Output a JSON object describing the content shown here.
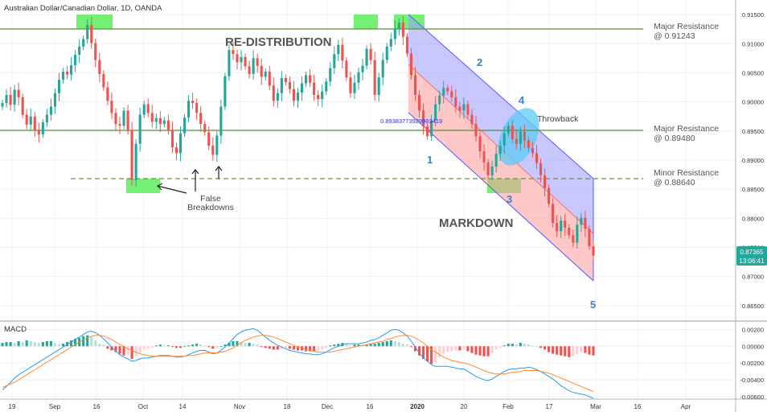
{
  "header": {
    "title": "Australian Dollar/Canadian Dollar, 1D, OANDA"
  },
  "colors": {
    "up": "#26a69a",
    "down": "#ef5350",
    "resistance_line": "#5b8f3a",
    "minor_line": "#6b8e4e",
    "highlight_box": "#66ee66",
    "channel_upper_fill": "#9b9bff",
    "channel_lower_fill": "#ff9b9b",
    "channel_line": "#5555ff",
    "ellipse": "#5ecbf5",
    "wave_label": "#3b82c4",
    "macd_line": "#2b9be8",
    "signal_line": "#ff8a33",
    "price_badge": "#26a69a"
  },
  "annotations": {
    "redistribution": "RE-DISTRIBUTION",
    "markdown": "MARKDOWN",
    "throwback": "Throwback",
    "false_breakdowns_1": "False",
    "false_breakdowns_2": "Breakdowns",
    "channel_value": "0.89383773929983419",
    "wave_1": "1",
    "wave_2": "2",
    "wave_3": "3",
    "wave_4": "4",
    "wave_5": "5"
  },
  "levels": {
    "major_1_line1": "Major Resistance",
    "major_1_line2": "@ 0.91243",
    "major_2_line1": "Major Resistance",
    "major_2_line2": "@ 0.89480",
    "minor_line1": "Minor Resistance",
    "minor_line2": "@ 0.88640"
  },
  "price_badge": {
    "price": "0.87365",
    "time": "13:06:41"
  },
  "macd": {
    "label": "MACD"
  },
  "chart_data": {
    "type": "candlestick",
    "title": "Australian Dollar/Canadian Dollar, 1D, OANDA",
    "price_axis_ticks": [
      "0.91500",
      "0.91000",
      "0.90500",
      "0.90000",
      "0.89500",
      "0.89000",
      "0.88500",
      "0.88000",
      "0.87500",
      "0.87000",
      "0.86500"
    ],
    "price_range": [
      0.8625,
      0.9175
    ],
    "macd_axis_ticks": [
      "0.00200",
      "0.00000",
      "-0.00200",
      "-0.00400",
      "-0.00600"
    ],
    "macd_range": [
      -0.0063,
      0.0029
    ],
    "x_axis_labels": [
      "19",
      "Sep",
      "16",
      "Oct",
      "14",
      "Nov",
      "18",
      "Dec",
      "16",
      "2020",
      "20",
      "Feb",
      "17",
      "Mar",
      "16",
      "Apr"
    ],
    "levels": [
      {
        "name": "Major Resistance",
        "value": 0.91243
      },
      {
        "name": "Major Resistance",
        "value": 0.8948
      },
      {
        "name": "Minor Resistance",
        "value": 0.8864
      }
    ],
    "closes": [
      0.8998,
      0.9012,
      0.8995,
      0.9021,
      0.9008,
      0.8978,
      0.8961,
      0.8975,
      0.8952,
      0.8944,
      0.8965,
      0.8978,
      0.8992,
      0.9015,
      0.9038,
      0.9052,
      0.9047,
      0.9063,
      0.9081,
      0.9095,
      0.9108,
      0.9132,
      0.9101,
      0.9072,
      0.9048,
      0.9025,
      0.9002,
      0.8981,
      0.8962,
      0.8959,
      0.8985,
      0.8952,
      0.8866,
      0.8928,
      0.8978,
      0.8996,
      0.8981,
      0.8966,
      0.8972,
      0.8962,
      0.8968,
      0.8952,
      0.8922,
      0.8912,
      0.8946,
      0.8973,
      0.9002,
      0.8998,
      0.8981,
      0.8962,
      0.8948,
      0.8925,
      0.8909,
      0.8942,
      0.8992,
      0.9044,
      0.9089,
      0.9082,
      0.9068,
      0.9077,
      0.9061,
      0.9048,
      0.9075,
      0.9062,
      0.9043,
      0.9052,
      0.9028,
      0.9002,
      0.9015,
      0.9041,
      0.9034,
      0.9022,
      0.9002,
      0.9016,
      0.9032,
      0.9046,
      0.9033,
      0.9012,
      0.9005,
      0.9018,
      0.9035,
      0.9058,
      0.9082,
      0.9098,
      0.9071,
      0.9042,
      0.9015,
      0.9033,
      0.9051,
      0.9062,
      0.9091,
      0.9072,
      0.9012,
      0.9042,
      0.9072,
      0.9095,
      0.9108,
      0.9126,
      0.9136,
      0.9112,
      0.9083,
      0.9046,
      0.9012,
      0.8985,
      0.8958,
      0.8941,
      0.8968,
      0.8996,
      0.9011,
      0.9024,
      0.9018,
      0.9008,
      0.8992,
      0.8985,
      0.8996,
      0.8978,
      0.8962,
      0.8941,
      0.8915,
      0.8896,
      0.8874,
      0.8889,
      0.8911,
      0.8925,
      0.8946,
      0.8959,
      0.8936,
      0.8928,
      0.8949,
      0.8934,
      0.8921,
      0.8912,
      0.8895,
      0.8874,
      0.8852,
      0.8825,
      0.8792,
      0.8778,
      0.8796,
      0.8784,
      0.8771,
      0.8758,
      0.8789,
      0.8801,
      0.8782,
      0.8752,
      0.8736
    ],
    "macd_hist": [
      0.0004,
      0.0005,
      0.0005,
      0.0004,
      0.0006,
      0.0005,
      0.0007,
      0.0006,
      0.0005,
      0.0004,
      0.0005,
      0.0006,
      0.0006,
      0.0004,
      0.0002,
      0.0003,
      0.0005,
      0.0007,
      0.0009,
      0.001,
      0.0012,
      0.0013,
      0.0011,
      0.0007,
      0.0003,
      0.0002,
      -0.0003,
      -0.0005,
      -0.0007,
      -0.0009,
      -0.0011,
      -0.001,
      -0.0015,
      -0.0012,
      -0.0008,
      -0.0004,
      -0.0003,
      -0.0002,
      0.0001,
      0.0002,
      0.0001,
      0.0001,
      -0.0001,
      -0.0002,
      -0.0002,
      0.0,
      0.0001,
      0.0002,
      0.0003,
      0.0002,
      0.0001,
      -0.0001,
      -0.0003,
      -0.0002,
      0.0,
      0.0002,
      0.0004,
      0.0006,
      0.0006,
      0.0005,
      0.0004,
      0.0004,
      0.0003,
      0.0002,
      -0.0001,
      -0.0002,
      -0.0003,
      -0.0004,
      -0.0004,
      -0.0003,
      -0.0002,
      -0.0003,
      -0.0004,
      -0.0005,
      -0.0005,
      -0.0006,
      -0.0006,
      -0.0006,
      -0.0005,
      -0.0004,
      -0.0002,
      0.0001,
      0.0002,
      0.0003,
      0.0004,
      0.0003,
      0.0001,
      0.0002,
      0.0002,
      0.0001,
      0.0002,
      0.0003,
      0.0003,
      0.0004,
      0.0005,
      0.0006,
      0.0007,
      0.0006,
      0.0005,
      0.0003,
      0.0002,
      -0.0001,
      -0.0006,
      -0.0011,
      -0.0015,
      -0.0018,
      -0.0021,
      -0.0019,
      -0.0013,
      -0.0009,
      -0.0007,
      -0.0006,
      -0.0005,
      -0.0005,
      -0.0004,
      -0.0006,
      -0.0008,
      -0.001,
      -0.0011,
      -0.0012,
      -0.0012,
      -0.0008,
      -0.0004,
      -0.0002,
      0.0001,
      0.0003,
      0.0003,
      0.0002,
      0.0004,
      0.0003,
      0.0002,
      0.0001,
      0.0,
      -0.0002,
      -0.0004,
      -0.0007,
      -0.0009,
      -0.001,
      -0.0011,
      -0.0012,
      -0.0013,
      -0.0012,
      -0.0009,
      -0.0007,
      -0.0008,
      -0.001,
      -0.0011
    ],
    "macd_line": [
      -0.0052,
      -0.0048,
      -0.0043,
      -0.0038,
      -0.0034,
      -0.0031,
      -0.0028,
      -0.0025,
      -0.0022,
      -0.0019,
      -0.0016,
      -0.0013,
      -0.001,
      -0.0007,
      -0.0004,
      -0.0001,
      0.0002,
      0.0005,
      0.0008,
      0.0011,
      0.0014,
      0.0017,
      0.0018,
      0.0016,
      0.0013,
      0.0009,
      0.0004,
      -0.0001,
      -0.0006,
      -0.001,
      -0.0013,
      -0.0015,
      -0.0018,
      -0.0017,
      -0.0015,
      -0.0014,
      -0.0014,
      -0.0013,
      -0.0012,
      -0.0011,
      -0.0011,
      -0.0011,
      -0.0012,
      -0.0013,
      -0.0013,
      -0.0012,
      -0.001,
      -0.0008,
      -0.0006,
      -0.0005,
      -0.0005,
      -0.0007,
      -0.0009,
      -0.0008,
      -0.0005,
      -0.0001,
      0.0004,
      0.0009,
      0.0014,
      0.0017,
      0.0019,
      0.002,
      0.0021,
      0.0019,
      0.0015,
      0.0011,
      0.0007,
      0.0004,
      0.0001,
      -0.0001,
      -0.0003,
      -0.0005,
      -0.0006,
      -0.0007,
      -0.0008,
      -0.0009,
      -0.0009,
      -0.001,
      -0.001,
      -0.0009,
      -0.0007,
      -0.0004,
      -0.0002,
      0.0,
      0.0002,
      0.0003,
      0.0003,
      0.0003,
      0.0003,
      0.0004,
      0.0005,
      0.0007,
      0.0008,
      0.001,
      0.0013,
      0.0016,
      0.0019,
      0.002,
      0.0019,
      0.0016,
      0.0012,
      0.0006,
      -0.0001,
      -0.0008,
      -0.0014,
      -0.0018,
      -0.0022,
      -0.0024,
      -0.0024,
      -0.0024,
      -0.0024,
      -0.0025,
      -0.0026,
      -0.0027,
      -0.0027,
      -0.003,
      -0.0033,
      -0.0036,
      -0.0038,
      -0.004,
      -0.0041,
      -0.0039,
      -0.0036,
      -0.0033,
      -0.003,
      -0.0028,
      -0.0027,
      -0.0027,
      -0.0026,
      -0.0026,
      -0.0025,
      -0.0026,
      -0.0028,
      -0.003,
      -0.0033,
      -0.0036,
      -0.0039,
      -0.0043,
      -0.0047,
      -0.005,
      -0.0053,
      -0.0055,
      -0.0056,
      -0.0057,
      -0.0058,
      -0.006,
      -0.0062
    ],
    "signal_line": [
      -0.0049,
      -0.0047,
      -0.0045,
      -0.0043,
      -0.004,
      -0.0037,
      -0.0034,
      -0.0031,
      -0.0028,
      -0.0025,
      -0.0022,
      -0.0019,
      -0.0016,
      -0.0013,
      -0.001,
      -0.0007,
      -0.0004,
      -0.0001,
      0.0002,
      0.0005,
      0.0008,
      0.001,
      0.0012,
      0.0013,
      0.0013,
      0.0012,
      0.001,
      0.0008,
      0.0005,
      0.0002,
      0.0,
      -0.0003,
      -0.0005,
      -0.0007,
      -0.0009,
      -0.001,
      -0.0011,
      -0.0012,
      -0.0012,
      -0.0012,
      -0.0012,
      -0.0012,
      -0.0012,
      -0.0012,
      -0.0012,
      -0.0012,
      -0.0011,
      -0.0011,
      -0.001,
      -0.0009,
      -0.0008,
      -0.0008,
      -0.0008,
      -0.0008,
      -0.0007,
      -0.0006,
      -0.0004,
      -0.0002,
      0.0001,
      0.0004,
      0.0007,
      0.0009,
      0.0011,
      0.0012,
      0.0013,
      0.0013,
      0.0012,
      0.0011,
      0.0009,
      0.0007,
      0.0005,
      0.0003,
      0.0001,
      -0.0001,
      -0.0002,
      -0.0004,
      -0.0005,
      -0.0006,
      -0.0007,
      -0.0007,
      -0.0007,
      -0.0007,
      -0.0006,
      -0.0005,
      -0.0004,
      -0.0003,
      -0.0002,
      -0.0001,
      0.0,
      0.0001,
      0.0002,
      0.0003,
      0.0004,
      0.0005,
      0.0006,
      0.0008,
      0.0009,
      0.0011,
      0.0012,
      0.0013,
      0.0013,
      0.0012,
      0.001,
      0.0007,
      0.0004,
      0.0,
      -0.0004,
      -0.0007,
      -0.001,
      -0.0013,
      -0.0015,
      -0.0017,
      -0.0018,
      -0.0019,
      -0.002,
      -0.0021,
      -0.0023,
      -0.0025,
      -0.0027,
      -0.0029,
      -0.0031,
      -0.0032,
      -0.0033,
      -0.0033,
      -0.0033,
      -0.0032,
      -0.0031,
      -0.0031,
      -0.003,
      -0.0029,
      -0.0029,
      -0.0029,
      -0.0029,
      -0.003,
      -0.0031,
      -0.0032,
      -0.0034,
      -0.0036,
      -0.0038,
      -0.004,
      -0.0042,
      -0.0044,
      -0.0046,
      -0.0048,
      -0.005,
      -0.0052,
      -0.0054
    ]
  }
}
